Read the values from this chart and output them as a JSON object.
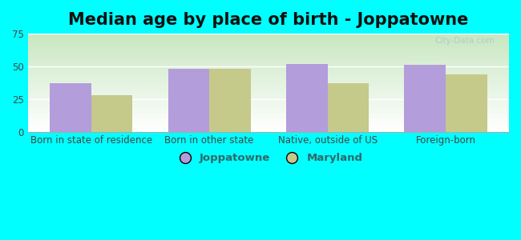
{
  "title": "Median age by place of birth - Joppatowne",
  "categories": [
    "Born in state of residence",
    "Born in other state",
    "Native, outside of US",
    "Foreign-born"
  ],
  "joppatowne_values": [
    37,
    48,
    52,
    51
  ],
  "maryland_values": [
    28,
    48,
    37,
    44
  ],
  "joppatowne_color": "#b39ddb",
  "maryland_color": "#c5c98a",
  "ylim": [
    0,
    75
  ],
  "yticks": [
    0,
    25,
    50,
    75
  ],
  "bar_width": 0.35,
  "legend_labels": [
    "Joppatowne",
    "Maryland"
  ],
  "outer_bg": "#00ffff",
  "title_fontsize": 15,
  "tick_fontsize": 8.5,
  "legend_fontsize": 9.5,
  "grad_top": "#c8e6c0",
  "grad_bottom": "#ffffff",
  "watermark_color": "#aac8c8"
}
